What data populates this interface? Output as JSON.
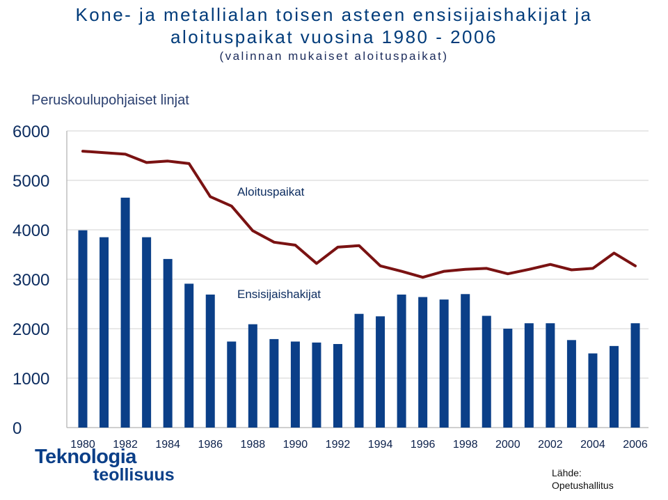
{
  "header": {
    "title_line1": "Kone- ja metallialan toisen asteen ensisijaishakijat ja",
    "title_line2": "aloituspaikat vuosina 1980 - 2006",
    "title_line3": "(valinnan mukaiset aloituspaikat)",
    "subtitle": "Peruskoulupohjaiset linjat"
  },
  "footer": {
    "logo_line1": "Teknologia",
    "logo_line2": "teollisuus",
    "source_label": "Lähde:",
    "source_value": "Opetushallitus"
  },
  "colors": {
    "bars": "#0b3f88",
    "line": "#7a1212",
    "grid": "#d9d9d9",
    "text": "#0d2d60"
  },
  "chart_data": {
    "type": "bar",
    "x": [
      1980,
      1981,
      1982,
      1983,
      1984,
      1985,
      1986,
      1987,
      1988,
      1989,
      1990,
      1991,
      1992,
      1993,
      1994,
      1995,
      1996,
      1997,
      1998,
      1999,
      2000,
      2001,
      2002,
      2003,
      2004,
      2005,
      2006
    ],
    "x_tick_labels": [
      "1980",
      "1982",
      "1984",
      "1986",
      "1988",
      "1990",
      "1992",
      "1994",
      "1996",
      "1998",
      "2000",
      "2002",
      "2004",
      "2006"
    ],
    "series": [
      {
        "name": "Ensisijaishakijat",
        "type": "bar",
        "values": [
          3990,
          3850,
          4650,
          3850,
          3410,
          2910,
          2690,
          1740,
          2090,
          1790,
          1740,
          1720,
          1690,
          2300,
          2250,
          2690,
          2640,
          2590,
          2700,
          2260,
          2000,
          2110,
          2110,
          1770,
          1500,
          1650,
          2110
        ]
      },
      {
        "name": "Aloituspaikat",
        "type": "line",
        "values": [
          5590,
          5560,
          5530,
          5360,
          5390,
          5340,
          4670,
          4480,
          3980,
          3750,
          3690,
          3320,
          3650,
          3680,
          3270,
          3160,
          3040,
          3160,
          3200,
          3220,
          3110,
          3200,
          3300,
          3190,
          3220,
          3530,
          3270
        ]
      }
    ],
    "y_ticks": [
      "0",
      "1000",
      "2000",
      "3000",
      "4000",
      "5000",
      "6000"
    ],
    "ylim": [
      0,
      6000
    ],
    "grid": true
  }
}
